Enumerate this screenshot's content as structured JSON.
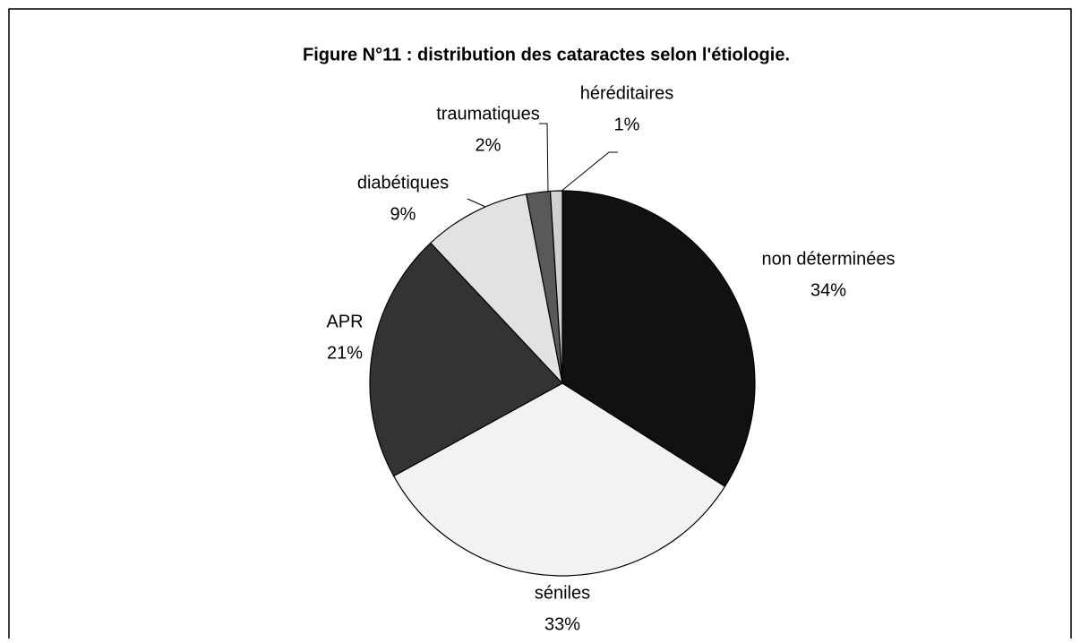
{
  "chart_data": {
    "type": "pie",
    "title": "Figure N°11 : distribution des cataractes selon l'étiologie.",
    "categories": [
      "non déterminées",
      "séniles",
      "APR",
      "diabétiques",
      "traumatiques",
      "héréditaires"
    ],
    "values": [
      34,
      33,
      21,
      9,
      2,
      1
    ],
    "value_labels": [
      "34%",
      "33%",
      "21%",
      "9%",
      "2%",
      "1%"
    ],
    "colors": [
      "#111111",
      "#f2f2f2",
      "#333333",
      "#e2e2e2",
      "#595959",
      "#d0d0d0"
    ]
  }
}
